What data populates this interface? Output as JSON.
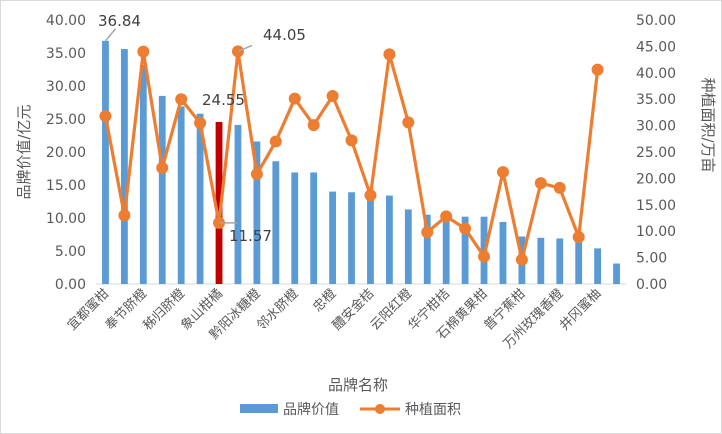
{
  "chart_data": {
    "type": "bar+line",
    "xlabel": "品牌名称",
    "ylabel_left": "品牌价值/亿元",
    "ylabel_right": "种植面积/万亩",
    "ylim_left": [
      0,
      40
    ],
    "ylim_right": [
      0,
      50
    ],
    "yticks_left": [
      "0.00",
      "5.00",
      "10.00",
      "15.00",
      "20.00",
      "25.00",
      "30.00",
      "35.00",
      "40.00"
    ],
    "yticks_right": [
      "0.00",
      "5.00",
      "10.00",
      "15.00",
      "20.00",
      "25.00",
      "30.00",
      "35.00",
      "40.00",
      "45.00",
      "50.00"
    ],
    "grid": false,
    "legend_position": "bottom",
    "categories": [
      "宜都蜜柑",
      "",
      "奉节脐橙",
      "",
      "秭归脐橙",
      "",
      "象山柑橘",
      "",
      "黔阳冰糖橙",
      "",
      "邻水脐橙",
      "",
      "忠橙",
      "",
      "醴安金桔",
      "",
      "云阳红橙",
      "",
      "华宁柑桔",
      "",
      "石棉黄果柑",
      "",
      "普宁蕉柑",
      "",
      "万州玫瑰香橙",
      "",
      "井冈蜜柚",
      ""
    ],
    "series": [
      {
        "name": "品牌价值",
        "type": "bar",
        "axis": "left",
        "color": "#5b9bd5",
        "highlight_color": "#c00000",
        "highlight_index": 6,
        "values": [
          36.84,
          35.6,
          33.2,
          28.5,
          26.9,
          25.8,
          24.55,
          24.1,
          21.6,
          18.6,
          16.9,
          16.9,
          14.0,
          13.9,
          13.8,
          13.4,
          11.3,
          10.5,
          10.3,
          10.2,
          10.2,
          9.4,
          7.2,
          7.0,
          6.9,
          6.6,
          5.4,
          3.1
        ]
      },
      {
        "name": "种植面积",
        "type": "line",
        "axis": "right",
        "color": "#ed7d31",
        "values": [
          31.8,
          13.0,
          44.0,
          22.0,
          35.0,
          30.5,
          11.57,
          44.05,
          20.8,
          27.0,
          35.1,
          30.1,
          35.6,
          27.2,
          16.8,
          43.5,
          30.6,
          9.8,
          12.8,
          10.5,
          5.2,
          21.2,
          4.6,
          19.1,
          18.2,
          8.9,
          40.6,
          null
        ]
      }
    ],
    "annotations": [
      {
        "text": "36.84",
        "series": "品牌价值",
        "index": 0
      },
      {
        "text": "24.55",
        "series": "品牌价值",
        "index": 6
      },
      {
        "text": "11.57",
        "series": "种植面积",
        "index": 6
      },
      {
        "text": "44.05",
        "series": "种植面积",
        "index": 7
      }
    ]
  }
}
